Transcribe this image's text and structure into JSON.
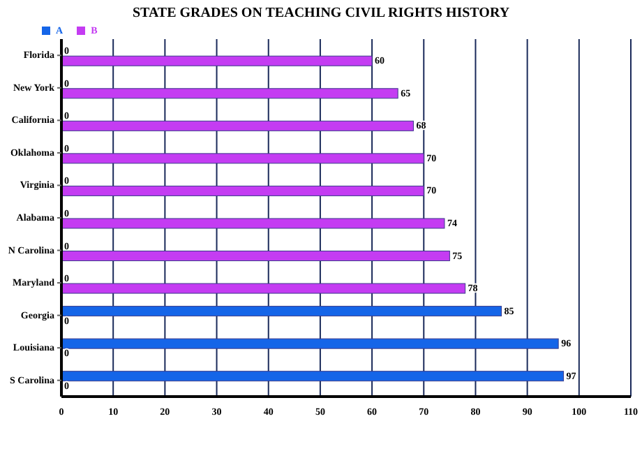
{
  "chart_data": {
    "type": "bar",
    "orientation": "horizontal",
    "title": "STATE GRADES ON TEACHING CIVIL RIGHTS HISTORY",
    "categories": [
      "Florida",
      "New York",
      "California",
      "Oklahoma",
      "Virginia",
      "Alabama",
      "N Carolina",
      "Maryland",
      "Georgia",
      "Louisiana",
      "S Carolina"
    ],
    "series": [
      {
        "name": "A",
        "color": "#1565e8",
        "values": [
          0,
          0,
          0,
          0,
          0,
          0,
          0,
          0,
          85,
          96,
          97
        ]
      },
      {
        "name": "B",
        "color": "#c43cf2",
        "values": [
          60,
          65,
          68,
          70,
          70,
          74,
          75,
          78,
          0,
          0,
          0
        ]
      }
    ],
    "xlim": [
      0,
      110
    ],
    "xticks": [
      0,
      10,
      20,
      30,
      40,
      50,
      60,
      70,
      80,
      90,
      100,
      110
    ],
    "grid": "x",
    "legend": "top left",
    "data_labels": true
  }
}
